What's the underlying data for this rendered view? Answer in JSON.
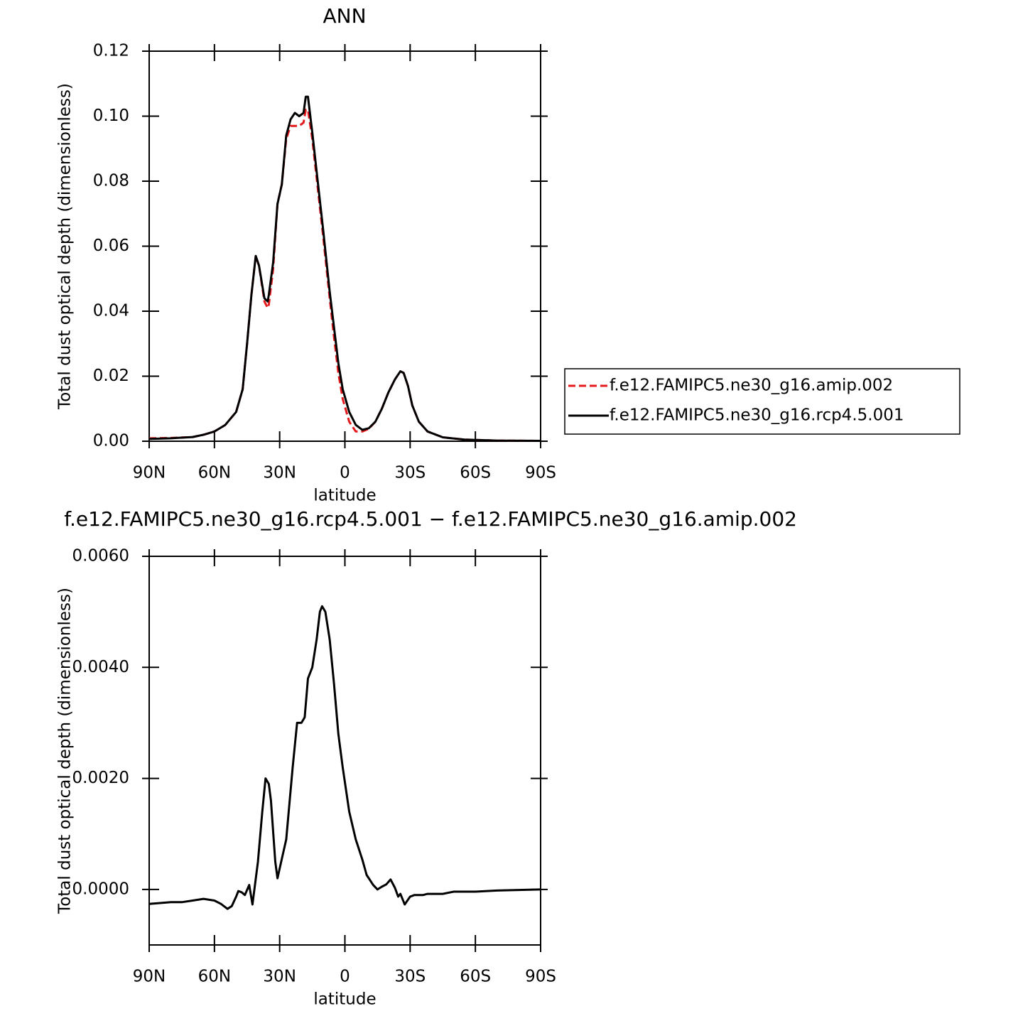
{
  "chart_data": [
    {
      "type": "line",
      "title": "ANN",
      "xlabel": "latitude",
      "ylabel": "Total dust optical depth (dimensionless)",
      "x": [
        90,
        80,
        70,
        65,
        60,
        55,
        50,
        47,
        45,
        43,
        41,
        39.5,
        37,
        35.5,
        35,
        33,
        31,
        29,
        27,
        25,
        23,
        21,
        19,
        18,
        17,
        15,
        13,
        10,
        7,
        5,
        3,
        1,
        -2,
        -5,
        -8,
        -11,
        -14,
        -17,
        -20,
        -23,
        -25.5,
        -27,
        -29,
        -31,
        -34,
        -38,
        -45,
        -55,
        -70,
        -90
      ],
      "series": [
        {
          "name": "f.e12.FAMIPC5.ne30_g16.amip.002",
          "color": "#e41a1c",
          "linestyle": "dashed",
          "values": [
            0.0009,
            0.001,
            0.0013,
            0.002,
            0.003,
            0.005,
            0.009,
            0.016,
            0.03,
            0.045,
            0.057,
            0.054,
            0.043,
            0.041,
            0.042,
            0.053,
            0.073,
            0.079,
            0.093,
            0.097,
            0.097,
            0.097,
            0.098,
            0.102,
            0.102,
            0.093,
            0.081,
            0.063,
            0.044,
            0.032,
            0.021,
            0.013,
            0.006,
            0.003,
            0.003,
            0.0038,
            0.006,
            0.01,
            0.015,
            0.019,
            0.0215,
            0.021,
            0.017,
            0.011,
            0.006,
            0.003,
            0.0012,
            0.0005,
            0.0002,
            0.0001
          ]
        },
        {
          "name": "f.e12.FAMIPC5.ne30_g16.rcp4.5.001",
          "color": "#000000",
          "linestyle": "solid",
          "values": [
            0.0007,
            0.0009,
            0.0013,
            0.002,
            0.003,
            0.005,
            0.009,
            0.016,
            0.03,
            0.045,
            0.057,
            0.054,
            0.044,
            0.043,
            0.045,
            0.055,
            0.073,
            0.079,
            0.094,
            0.099,
            0.101,
            0.1,
            0.101,
            0.106,
            0.106,
            0.095,
            0.083,
            0.065,
            0.046,
            0.035,
            0.024,
            0.016,
            0.009,
            0.005,
            0.0035,
            0.004,
            0.006,
            0.01,
            0.015,
            0.019,
            0.0215,
            0.021,
            0.017,
            0.011,
            0.006,
            0.003,
            0.0012,
            0.0005,
            0.0002,
            0.0001
          ]
        }
      ],
      "xlim": [
        90,
        -90
      ],
      "xticks": [
        {
          "value": 90,
          "label": "90N"
        },
        {
          "value": 60,
          "label": "60N"
        },
        {
          "value": 30,
          "label": "30N"
        },
        0,
        {
          "value": -30,
          "label": "30S"
        },
        {
          "value": -60,
          "label": "60S"
        },
        {
          "value": -90,
          "label": "90S"
        }
      ],
      "ylim": [
        0,
        0.12
      ],
      "yticks": [
        {
          "value": 0,
          "label": "0.00"
        },
        {
          "value": 0.02,
          "label": "0.02"
        },
        {
          "value": 0.04,
          "label": "0.04"
        },
        {
          "value": 0.06,
          "label": "0.06"
        },
        {
          "value": 0.08,
          "label": "0.08"
        },
        {
          "value": 0.1,
          "label": "0.10"
        },
        {
          "value": 0.12,
          "label": "0.12"
        }
      ],
      "legend": "right"
    },
    {
      "type": "line",
      "title": "f.e12.FAMIPC5.ne30_g16.rcp4.5.001 − f.e12.FAMIPC5.ne30_g16.amip.002",
      "xlabel": "latitude",
      "ylabel": "Total dust optical depth (dimensionless)",
      "x": [
        90,
        80,
        75,
        70,
        65,
        60,
        57,
        54,
        52,
        50,
        49,
        47.5,
        46,
        44,
        42.5,
        40,
        38,
        36.5,
        35,
        34,
        32,
        31,
        29,
        27,
        24,
        22,
        20,
        18.5,
        17,
        15,
        13,
        11.5,
        10.5,
        9,
        7,
        5,
        3,
        1,
        -2,
        -5,
        -8,
        -10,
        -13,
        -15,
        -17,
        -19,
        -21,
        -23,
        -24.5,
        -25.5,
        -27.5,
        -30,
        -32,
        -36,
        -38,
        -45,
        -50,
        -60,
        -70,
        -90
      ],
      "color": "#000000",
      "values": [
        -0.00026,
        -0.00023,
        -0.00023,
        -0.0002,
        -0.00017,
        -0.0002,
        -0.00026,
        -0.00035,
        -0.0003,
        -0.00013,
        -3e-05,
        -5e-05,
        -0.0001,
        8e-05,
        -0.00027,
        0.0005,
        0.0014,
        0.002,
        0.0019,
        0.0016,
        0.0005,
        0.0002,
        0.00055,
        0.0009,
        0.0022,
        0.003,
        0.003,
        0.0031,
        0.0038,
        0.004,
        0.0045,
        0.005,
        0.0051,
        0.005,
        0.0045,
        0.0037,
        0.0028,
        0.0022,
        0.0014,
        0.0009,
        0.00054,
        0.00026,
        8e-05,
        0,
        5e-05,
        9e-05,
        0.00018,
        3e-05,
        -0.00013,
        -8e-05,
        -0.00027,
        -0.00013,
        -0.0001,
        -0.0001,
        -8e-05,
        -8e-05,
        -4e-05,
        -4e-05,
        -2e-05,
        0
      ],
      "xlim": [
        90,
        -90
      ],
      "xticks": [
        {
          "value": 90,
          "label": "90N"
        },
        {
          "value": 60,
          "label": "60N"
        },
        {
          "value": 30,
          "label": "30N"
        },
        0,
        {
          "value": -30,
          "label": "30S"
        },
        {
          "value": -60,
          "label": "60S"
        },
        {
          "value": -90,
          "label": "90S"
        }
      ],
      "ylim": [
        -0.001,
        0.006
      ],
      "yticks": [
        {
          "value": 0,
          "label": "0.0000"
        },
        {
          "value": 0.002,
          "label": "0.0020"
        },
        {
          "value": 0.004,
          "label": "0.0040"
        },
        {
          "value": 0.006,
          "label": "0.0060"
        }
      ]
    }
  ]
}
